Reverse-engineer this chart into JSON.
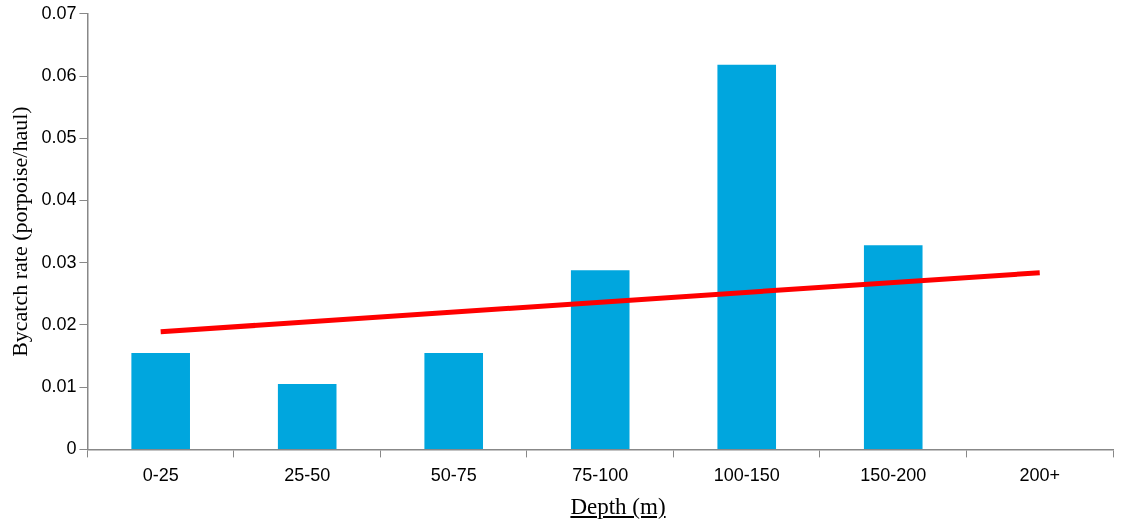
{
  "chart_data": {
    "type": "bar",
    "xlabel": "Depth (m)",
    "ylabel": "Bycatch rate (porpoise/haul)",
    "categories": [
      "0-25",
      "25-50",
      "50-75",
      "75-100",
      "100-150",
      "150-200",
      "200+"
    ],
    "series": [
      {
        "color": "#00a6de",
        "values": [
          0.0155,
          0.0105,
          0.0155,
          0.0288,
          0.0618,
          0.0328,
          null
        ]
      },
      {
        "type": "line",
        "color": "#ff0000",
        "x": [
          "0-25",
          "200+"
        ],
        "values": [
          0.0189,
          0.0284
        ],
        "marker": "none",
        "line_style": "solid"
      }
    ],
    "ylim": [
      0,
      0.07
    ],
    "yticks": [
      0,
      0.01,
      0.02,
      0.03,
      0.04,
      0.05,
      0.06,
      0.07
    ],
    "grid": false,
    "legend": false
  }
}
